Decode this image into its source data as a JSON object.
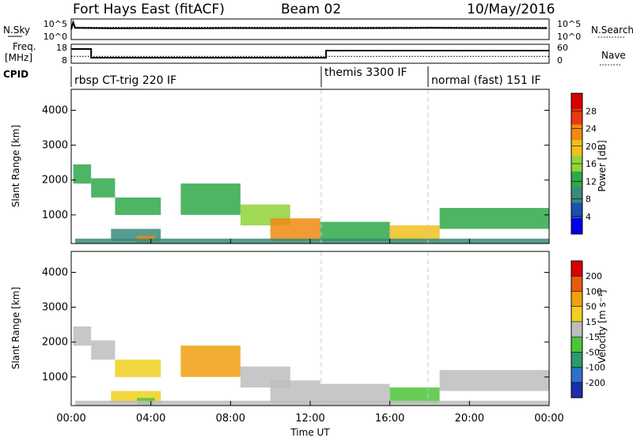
{
  "header": {
    "site": "Fort Hays East (fitACF)",
    "beam": "Beam 02",
    "date": "10/May/2016"
  },
  "noise_panel": {
    "left_label": "N.Sky",
    "right_label": "N.Search",
    "left_ticks": [
      "10^5",
      "10^0"
    ],
    "right_ticks": [
      "10^5",
      "10^0"
    ]
  },
  "freq_panel": {
    "left_label_top": "Freq.",
    "left_label_bottom": "[MHz]",
    "right_label": "Nave",
    "left_ticks": [
      "18",
      "8"
    ],
    "right_ticks": [
      "60",
      "0"
    ]
  },
  "cpid": {
    "label": "CPID",
    "modes": [
      "rbsp CT-trig 220 IF",
      "themis 3300 IF",
      "normal (fast) 151 IF"
    ]
  },
  "axes": {
    "ylabel": "Slant Range [km]",
    "y_ticks": [
      "1000",
      "2000",
      "3000",
      "4000"
    ],
    "xlabel": "Time UT",
    "x_ticks": [
      "00:00",
      "04:00",
      "08:00",
      "12:00",
      "16:00",
      "20:00",
      "00:00"
    ]
  },
  "power_colorbar": {
    "label": "Power [dB]",
    "ticks": [
      "28",
      "24",
      "20",
      "16",
      "12",
      "8",
      "4"
    ],
    "colors": [
      "#0000ee",
      "#1e4fb0",
      "#3a8a7a",
      "#2fa84a",
      "#8fd43a",
      "#f0c020",
      "#f08a10",
      "#e83a10",
      "#d80000"
    ]
  },
  "velocity_colorbar": {
    "label": "Velocity [m s⁻¹]",
    "ticks": [
      "200",
      "100",
      "50",
      "15",
      "-15",
      "-50",
      "-100",
      "-200"
    ],
    "colors": [
      "#1a2ea8",
      "#2f6fcc",
      "#2a9a6a",
      "#4cc43a",
      "#bdbdbd",
      "#f0d020",
      "#f0a010",
      "#e85a10",
      "#d80000"
    ]
  },
  "chart_data": [
    {
      "type": "line",
      "title": "N.Sky / N.Search",
      "x_unit": "hours UT",
      "xlim": [
        0,
        24
      ],
      "log_scale": true,
      "ylim": [
        1,
        100000
      ],
      "series": [
        {
          "name": "N.Sky",
          "style": "solid",
          "x": [
            0,
            0.1,
            0.2,
            2,
            4,
            6,
            8,
            10,
            12,
            14,
            16,
            18,
            20,
            22,
            23.9
          ],
          "values": [
            300,
            30000,
            800,
            600,
            650,
            600,
            700,
            650,
            700,
            650,
            700,
            750,
            700,
            700,
            650
          ]
        },
        {
          "name": "N.Search",
          "style": "dotted",
          "x": [
            0,
            0.2,
            2,
            4,
            6,
            8,
            10,
            12,
            14,
            16,
            18,
            20,
            22,
            23.9
          ],
          "values": [
            1500,
            1200,
            1100,
            1150,
            1100,
            1200,
            1150,
            1200,
            1150,
            1200,
            1250,
            1200,
            1200,
            1150
          ]
        }
      ]
    },
    {
      "type": "line",
      "title": "Freq. [MHz] / Nave",
      "x_unit": "hours UT",
      "xlim": [
        0,
        24
      ],
      "series": [
        {
          "name": "Freq.",
          "style": "solid",
          "ylim": [
            8,
            18
          ],
          "x": [
            0,
            1,
            1,
            12.8,
            12.8,
            24
          ],
          "values": [
            16,
            16,
            10.5,
            10.5,
            15,
            15
          ]
        },
        {
          "name": "Nave",
          "style": "dotted",
          "ylim": [
            0,
            60
          ],
          "x": [
            0,
            24
          ],
          "values": [
            20,
            20
          ]
        }
      ]
    },
    {
      "type": "table",
      "title": "CPID",
      "x_unit": "hours UT",
      "columns": [
        "name",
        "start",
        "end"
      ],
      "rows": [
        [
          "rbsp CT-trig 220 IF",
          0,
          12.7
        ],
        [
          "themis 3300 IF",
          12.7,
          18
        ],
        [
          "normal (fast) 151 IF",
          18,
          24
        ]
      ]
    },
    {
      "type": "heatmap",
      "title": "Power [dB]",
      "x_unit": "hours UT",
      "y_unit": "km",
      "xlim": [
        0,
        24
      ],
      "ylim": [
        180,
        4600
      ],
      "clim": [
        0,
        32
      ],
      "mode_boundaries_hours": [
        12.7,
        18
      ],
      "regions": [
        {
          "x": [
            0.1,
            1.0
          ],
          "y": [
            1900,
            2450
          ],
          "value": 14
        },
        {
          "x": [
            1.0,
            2.2
          ],
          "y": [
            1500,
            2050
          ],
          "value": 13
        },
        {
          "x": [
            2.2,
            4.5
          ],
          "y": [
            1000,
            1500
          ],
          "value": 14
        },
        {
          "x": [
            2.0,
            4.5
          ],
          "y": [
            250,
            600
          ],
          "value": 9
        },
        {
          "x": [
            3.3,
            4.2
          ],
          "y": [
            200,
            400
          ],
          "value": 22
        },
        {
          "x": [
            5.5,
            8.5
          ],
          "y": [
            1000,
            1900
          ],
          "value": 14
        },
        {
          "x": [
            8.5,
            11.0
          ],
          "y": [
            700,
            1300
          ],
          "value": 16
        },
        {
          "x": [
            10.0,
            12.5
          ],
          "y": [
            250,
            900
          ],
          "value": 24
        },
        {
          "x": [
            12.5,
            16.0
          ],
          "y": [
            250,
            800
          ],
          "value": 14
        },
        {
          "x": [
            16.0,
            18.5
          ],
          "y": [
            250,
            700
          ],
          "value": 20
        },
        {
          "x": [
            18.5,
            24.0
          ],
          "y": [
            600,
            1200
          ],
          "value": 14
        },
        {
          "x": [
            0.2,
            24.0
          ],
          "y": [
            180,
            320
          ],
          "value": 10
        }
      ]
    },
    {
      "type": "heatmap",
      "title": "Velocity [m s⁻¹]",
      "x_unit": "hours UT",
      "y_unit": "km",
      "xlim": [
        0,
        24
      ],
      "ylim": [
        180,
        4600
      ],
      "clim": [
        -200,
        200
      ],
      "mode_boundaries_hours": [
        12.7,
        18
      ],
      "regions": [
        {
          "x": [
            0.1,
            1.0
          ],
          "y": [
            1900,
            2450
          ],
          "value": 0
        },
        {
          "x": [
            1.0,
            2.2
          ],
          "y": [
            1500,
            2050
          ],
          "value": -10
        },
        {
          "x": [
            2.2,
            4.5
          ],
          "y": [
            1000,
            1500
          ],
          "value": 60
        },
        {
          "x": [
            2.0,
            4.5
          ],
          "y": [
            250,
            600
          ],
          "value": 30
        },
        {
          "x": [
            3.3,
            4.2
          ],
          "y": [
            200,
            400
          ],
          "value": -60
        },
        {
          "x": [
            5.5,
            8.5
          ],
          "y": [
            1000,
            1900
          ],
          "value": 70
        },
        {
          "x": [
            8.5,
            11.0
          ],
          "y": [
            700,
            1300
          ],
          "value": 0
        },
        {
          "x": [
            10.0,
            12.5
          ],
          "y": [
            250,
            900
          ],
          "value": 0
        },
        {
          "x": [
            12.5,
            16.0
          ],
          "y": [
            250,
            800
          ],
          "value": 0
        },
        {
          "x": [
            16.0,
            18.5
          ],
          "y": [
            250,
            700
          ],
          "value": -30
        },
        {
          "x": [
            18.5,
            24.0
          ],
          "y": [
            600,
            1200
          ],
          "value": 0
        },
        {
          "x": [
            0.2,
            24.0
          ],
          "y": [
            180,
            320
          ],
          "value": 20
        }
      ]
    }
  ]
}
